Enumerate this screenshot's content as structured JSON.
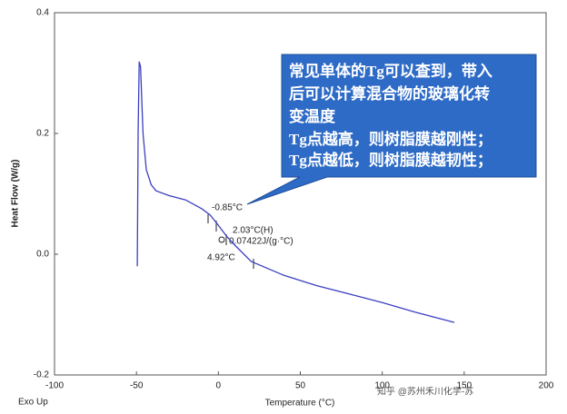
{
  "chart_data": {
    "type": "line",
    "xlabel": "Temperature (°C)",
    "ylabel": "Heat Flow (W/g)",
    "corner_note": "Exo Up",
    "x": [
      -49.5,
      -49,
      -48.3,
      -47.5,
      -46,
      -44,
      -41,
      -38,
      -30,
      -20,
      -10,
      -5,
      0,
      5,
      10,
      20,
      40,
      60,
      80,
      100,
      120,
      144
    ],
    "series": [
      {
        "color": "#3b3fc0",
        "values": [
          -0.02,
          0.2,
          0.319,
          0.31,
          0.2,
          0.14,
          0.115,
          0.105,
          0.097,
          0.09,
          0.075,
          0.065,
          0.048,
          0.03,
          0.015,
          -0.012,
          -0.035,
          -0.052,
          -0.066,
          -0.08,
          -0.096,
          -0.113
        ]
      }
    ],
    "xlim": [
      -100,
      200
    ],
    "xticks": [
      -100,
      -50,
      0,
      50,
      100,
      150,
      200
    ],
    "ylim": [
      -0.2,
      0.4
    ],
    "yticks": [
      -0.2,
      {
        "value": 0,
        "label": "0.0"
      },
      0.2,
      0.4
    ],
    "annotations": [
      "-0.85°C",
      "2.03°C(H)",
      "0.07422J/(g·°C)",
      "4.92°C"
    ],
    "callout": [
      "常见单体的Tg可以查到，带入",
      "后可以计算混合物的玻璃化转",
      "变温度",
      "Tg点越高，则树脂膜越刚性；",
      "Tg点越低，则树脂膜越韧性；"
    ],
    "watermark": "知乎 @苏州禾川化学-苏"
  }
}
